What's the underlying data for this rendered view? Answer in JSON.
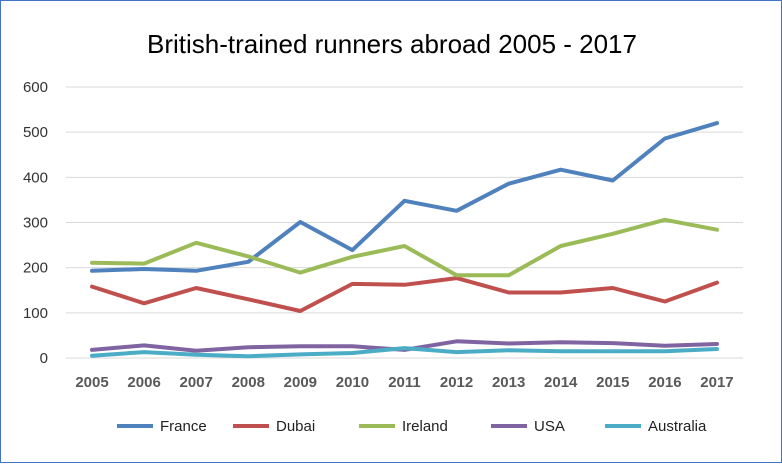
{
  "chart_data": {
    "type": "line",
    "title": "British-trained runners abroad 2005 - 2017",
    "xlabel": "",
    "ylabel": "",
    "categories": [
      "2005",
      "2006",
      "2007",
      "2008",
      "2009",
      "2010",
      "2011",
      "2012",
      "2013",
      "2014",
      "2015",
      "2016",
      "2017"
    ],
    "ylim": [
      0,
      600
    ],
    "yticks": [
      "0",
      "100",
      "200",
      "300",
      "400",
      "500",
      "600"
    ],
    "grid": true,
    "legend_position": "bottom",
    "series": [
      {
        "name": "France",
        "color": "#4f81bd",
        "values": [
          193,
          197,
          193,
          213,
          301,
          239,
          348,
          326,
          386,
          417,
          393,
          486,
          520
        ]
      },
      {
        "name": "Dubai",
        "color": "#c0504d",
        "values": [
          158,
          121,
          155,
          130,
          104,
          164,
          162,
          177,
          145,
          145,
          155,
          125,
          167
        ]
      },
      {
        "name": "Ireland",
        "color": "#9bbb59",
        "values": [
          211,
          209,
          255,
          225,
          189,
          224,
          248,
          183,
          183,
          248,
          275,
          306,
          284
        ]
      },
      {
        "name": "USA",
        "color": "#8064a2",
        "values": [
          18,
          28,
          16,
          24,
          26,
          26,
          18,
          37,
          32,
          35,
          33,
          27,
          31
        ]
      },
      {
        "name": "Australia",
        "color": "#4bacc6",
        "values": [
          5,
          13,
          7,
          4,
          8,
          11,
          22,
          13,
          17,
          15,
          15,
          15,
          20
        ]
      }
    ]
  }
}
